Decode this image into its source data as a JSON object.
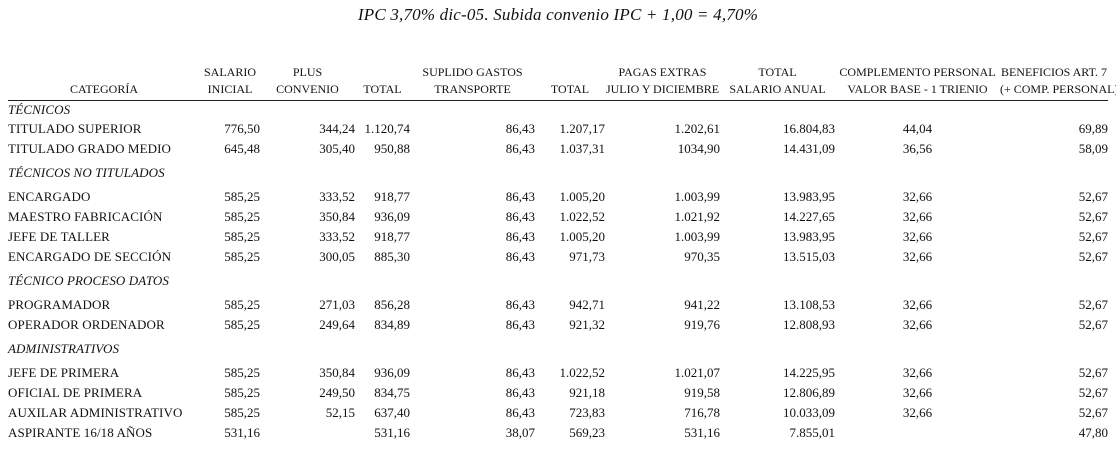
{
  "caption": "IPC 3,70% dic-05. Subida convenio IPC + 1,00 = 4,70%",
  "headers": {
    "categoria": "CATEGORÍA",
    "salario_l1": "SALARIO",
    "salario_l2": "INICIAL",
    "plus_l1": "PLUS",
    "plus_l2": "CONVENIO",
    "total1": "TOTAL",
    "suplido_l1": "SUPLIDO GASTOS",
    "suplido_l2": "TRANSPORTE",
    "total2": "TOTAL",
    "pagas_l1": "PAGAS EXTRAS",
    "pagas_l2": "JULIO Y DICIEMBRE",
    "anual_l1": "TOTAL",
    "anual_l2": "SALARIO ANUAL",
    "complemento_l1": "COMPLEMENTO PERSONAL",
    "complemento_l2": "VALOR BASE - 1 TRIENIO",
    "beneficios_l1": "BENEFICIOS ART. 7",
    "beneficios_l2": "(+ COMP. PERSONAL)"
  },
  "groups": [
    {
      "title": "TÉCNICOS",
      "rows": [
        {
          "categoria": "TITULADO SUPERIOR",
          "salario": "776,50",
          "plus": "344,24",
          "total": "1.120,74",
          "suplido": "86,43",
          "total2": "1.207,17",
          "pagas": "1.202,61",
          "anual": "16.804,83",
          "complemento": "44,04",
          "beneficios": "69,89"
        },
        {
          "categoria": "TITULADO GRADO MEDIO",
          "salario": "645,48",
          "plus": "305,40",
          "total": "950,88",
          "suplido": "86,43",
          "total2": "1.037,31",
          "pagas": "1034,90",
          "anual": "14.431,09",
          "complemento": "36,56",
          "beneficios": "58,09"
        }
      ]
    },
    {
      "title": "TÉCNICOS NO TITULADOS",
      "rows": [
        {
          "categoria": "ENCARGADO",
          "salario": "585,25",
          "plus": "333,52",
          "total": "918,77",
          "suplido": "86,43",
          "total2": "1.005,20",
          "pagas": "1.003,99",
          "anual": "13.983,95",
          "complemento": "32,66",
          "beneficios": "52,67"
        },
        {
          "categoria": "MAESTRO FABRICACIÓN",
          "salario": "585,25",
          "plus": "350,84",
          "total": "936,09",
          "suplido": "86,43",
          "total2": "1.022,52",
          "pagas": "1.021,92",
          "anual": "14.227,65",
          "complemento": "32,66",
          "beneficios": "52,67"
        },
        {
          "categoria": "JEFE DE TALLER",
          "salario": "585,25",
          "plus": "333,52",
          "total": "918,77",
          "suplido": "86,43",
          "total2": "1.005,20",
          "pagas": "1.003,99",
          "anual": "13.983,95",
          "complemento": "32,66",
          "beneficios": "52,67"
        },
        {
          "categoria": "ENCARGADO DE SECCIÓN",
          "salario": "585,25",
          "plus": "300,05",
          "total": "885,30",
          "suplido": "86,43",
          "total2": "971,73",
          "pagas": "970,35",
          "anual": "13.515,03",
          "complemento": "32,66",
          "beneficios": "52,67"
        }
      ]
    },
    {
      "title": "TÉCNICO PROCESO DATOS",
      "rows": [
        {
          "categoria": "PROGRAMADOR",
          "salario": "585,25",
          "plus": "271,03",
          "total": "856,28",
          "suplido": "86,43",
          "total2": "942,71",
          "pagas": "941,22",
          "anual": "13.108,53",
          "complemento": "32,66",
          "beneficios": "52,67"
        },
        {
          "categoria": "OPERADOR ORDENADOR",
          "salario": "585,25",
          "plus": "249,64",
          "total": "834,89",
          "suplido": "86,43",
          "total2": "921,32",
          "pagas": "919,76",
          "anual": "12.808,93",
          "complemento": "32,66",
          "beneficios": "52,67"
        }
      ]
    },
    {
      "title": "ADMINISTRATIVOS",
      "rows": [
        {
          "categoria": "JEFE DE PRIMERA",
          "salario": "585,25",
          "plus": "350,84",
          "total": "936,09",
          "suplido": "86,43",
          "total2": "1.022,52",
          "pagas": "1.021,07",
          "anual": "14.225,95",
          "complemento": "32,66",
          "beneficios": "52,67"
        },
        {
          "categoria": "OFICIAL DE PRIMERA",
          "salario": "585,25",
          "plus": "249,50",
          "total": "834,75",
          "suplido": "86,43",
          "total2": "921,18",
          "pagas": "919,58",
          "anual": "12.806,89",
          "complemento": "32,66",
          "beneficios": "52,67"
        },
        {
          "categoria": "AUXILAR ADMINISTRATIVO",
          "salario": "585,25",
          "plus": "52,15",
          "total": "637,40",
          "suplido": "86,43",
          "total2": "723,83",
          "pagas": "716,78",
          "anual": "10.033,09",
          "complemento": "32,66",
          "beneficios": "52,67"
        },
        {
          "categoria": "ASPIRANTE 16/18 AÑOS",
          "salario": "531,16",
          "plus": "",
          "total": "531,16",
          "suplido": "38,07",
          "total2": "569,23",
          "pagas": "531,16",
          "anual": "7.855,01",
          "complemento": "",
          "beneficios": "47,80"
        }
      ]
    }
  ]
}
